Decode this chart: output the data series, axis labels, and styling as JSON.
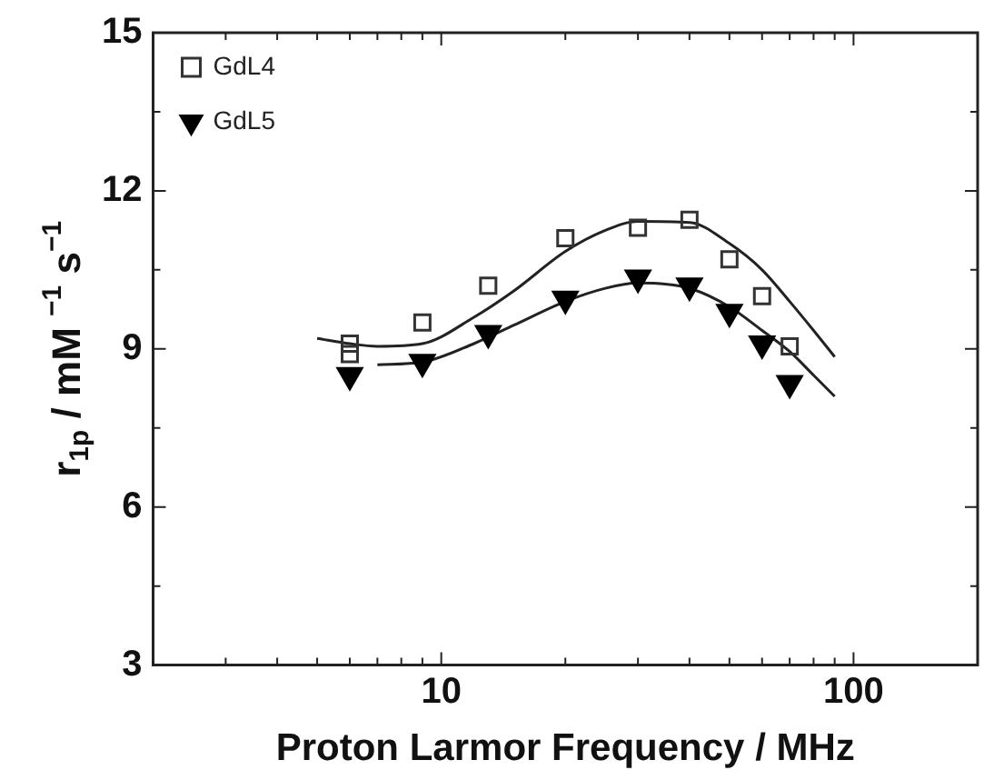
{
  "chart_data": {
    "type": "scatter",
    "xlabel": "Proton Larmor Frequency / MHz",
    "ylabel": "r$_{1p}$ / mM $^{−1}$ s$^{−1}$",
    "log": "x",
    "xlim": [
      2,
      200
    ],
    "ylim": [
      3,
      15
    ],
    "xticks": [
      {
        "value": 2,
        "label": null
      },
      {
        "value": 3,
        "label": null
      },
      {
        "value": 4,
        "label": null
      },
      {
        "value": 5,
        "label": null
      },
      {
        "value": 6,
        "label": null
      },
      {
        "value": 7,
        "label": null
      },
      {
        "value": 8,
        "label": null
      },
      {
        "value": 9,
        "label": null
      },
      10,
      {
        "value": 20,
        "label": null
      },
      {
        "value": 30,
        "label": null
      },
      {
        "value": 40,
        "label": null
      },
      {
        "value": 50,
        "label": null
      },
      {
        "value": 60,
        "label": null
      },
      {
        "value": 70,
        "label": null
      },
      {
        "value": 80,
        "label": null
      },
      {
        "value": 90,
        "label": null
      },
      100,
      {
        "value": 200,
        "label": null
      }
    ],
    "yticks": [
      3,
      6,
      9,
      12,
      15
    ],
    "grid": false,
    "legend": "top left",
    "series": [
      {
        "name": "GdL4",
        "color": "#333333",
        "marker": "square",
        "x": [
          6,
          6,
          9,
          13,
          20,
          30,
          40,
          50,
          60,
          70
        ],
        "values": [
          9.1,
          8.9,
          9.5,
          10.2,
          11.1,
          11.3,
          11.45,
          10.7,
          10.0,
          9.05
        ]
      },
      {
        "name": "GdL5",
        "color": "#000000",
        "marker": "triangle",
        "x": [
          6,
          9,
          13,
          20,
          30,
          40,
          50,
          60,
          70
        ],
        "values": [
          8.5,
          8.75,
          9.3,
          9.95,
          10.35,
          10.2,
          9.7,
          9.1,
          8.35
        ]
      },
      {
        "type": "line",
        "color": "#222222",
        "marker": "none",
        "x": [
          5,
          6,
          7,
          9,
          12,
          15,
          20,
          25,
          30,
          40,
          50,
          60,
          70,
          80,
          90
        ],
        "values": [
          9.2,
          9.1,
          9.05,
          9.1,
          9.6,
          10.1,
          10.85,
          11.25,
          11.42,
          11.4,
          11.0,
          10.5,
          9.9,
          9.35,
          8.85
        ]
      },
      {
        "type": "line",
        "color": "#222222",
        "marker": "none",
        "x": [
          7,
          9,
          12,
          15,
          20,
          25,
          30,
          40,
          50,
          60,
          70,
          80,
          90
        ],
        "values": [
          8.7,
          8.75,
          9.1,
          9.45,
          9.9,
          10.15,
          10.25,
          10.15,
          9.8,
          9.35,
          8.95,
          8.5,
          8.1
        ]
      }
    ]
  }
}
